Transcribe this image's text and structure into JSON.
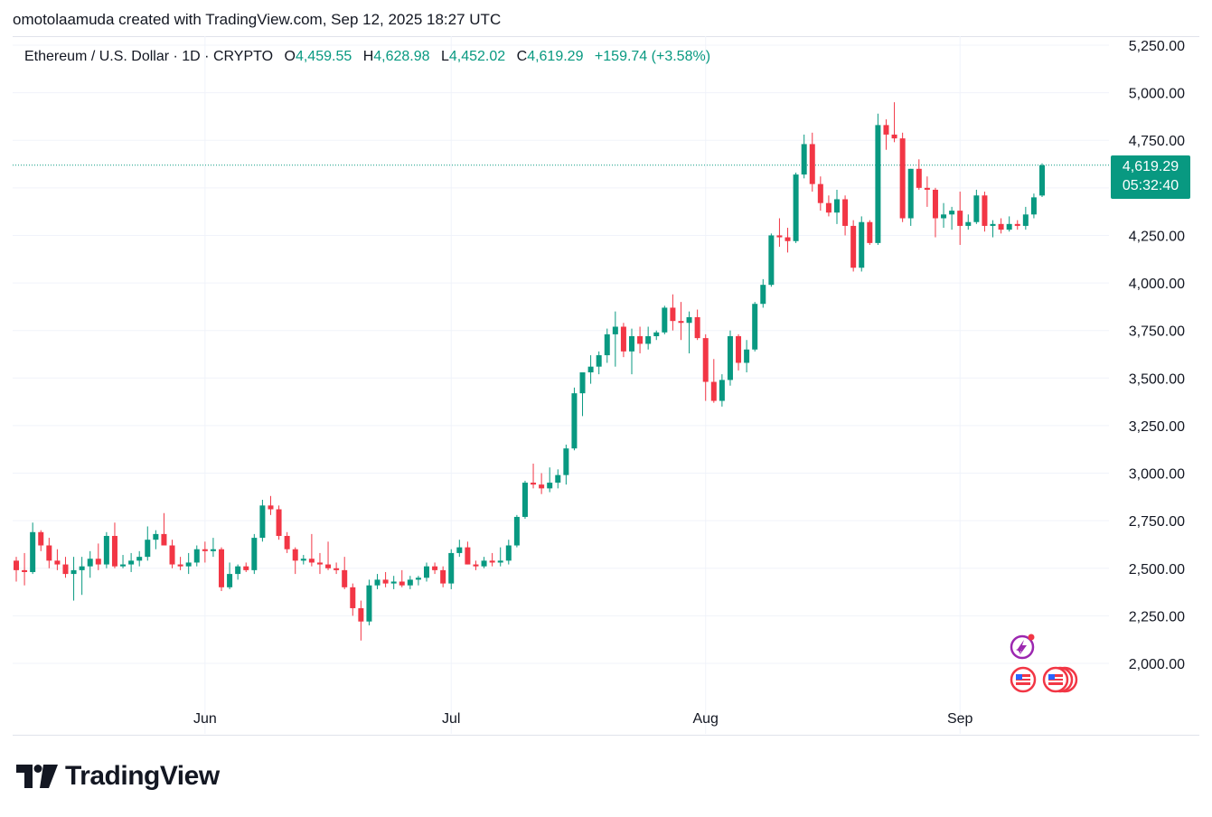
{
  "header": {
    "attribution": "omotolaamuda created with TradingView.com, Sep 12, 2025 18:27 UTC"
  },
  "legend": {
    "symbol": "Ethereum / U.S. Dollar · 1D · CRYPTO",
    "open_key": "O",
    "open": "4,459.55",
    "high_key": "H",
    "high": "4,628.98",
    "low_key": "L",
    "low": "4,452.02",
    "close_key": "C",
    "close": "4,619.29",
    "change": "+159.74 (+3.58%)"
  },
  "price_tag": {
    "price": "4,619.29",
    "countdown": "05:32:40"
  },
  "footer": {
    "brand": "TradingView"
  },
  "colors": {
    "up": "#089981",
    "down": "#f23645",
    "grid": "#f0f3fa",
    "text": "#131722",
    "tag": "#089981"
  },
  "icons": [
    "flash-event-icon",
    "us-flag-event-icon",
    "us-flag-event-group-icon"
  ],
  "chart_data": {
    "type": "candlestick",
    "y_ticks": [
      "5,250.00",
      "5,000.00",
      "4,750.00",
      "4,500.00",
      "4,250.00",
      "4,000.00",
      "3,750.00",
      "3,500.00",
      "3,250.00",
      "3,000.00",
      "2,750.00",
      "2,500.00",
      "2,250.00",
      "2,000.00"
    ],
    "y_tick_values": [
      5250,
      5000,
      4750,
      4500,
      4250,
      4000,
      3750,
      3500,
      3250,
      3000,
      2750,
      2500,
      2250,
      2000
    ],
    "x_ticks": [
      {
        "label": "Jun",
        "index": 23
      },
      {
        "label": "Jul",
        "index": 53
      },
      {
        "label": "Aug",
        "index": 84
      },
      {
        "label": "Sep",
        "index": 115
      }
    ],
    "last_price": 4619.29,
    "candles": [
      {
        "o": 2540,
        "h": 2560,
        "l": 2430,
        "c": 2490
      },
      {
        "o": 2490,
        "h": 2580,
        "l": 2410,
        "c": 2480
      },
      {
        "o": 2480,
        "h": 2740,
        "l": 2470,
        "c": 2690
      },
      {
        "o": 2690,
        "h": 2700,
        "l": 2590,
        "c": 2620
      },
      {
        "o": 2620,
        "h": 2660,
        "l": 2500,
        "c": 2540
      },
      {
        "o": 2540,
        "h": 2600,
        "l": 2490,
        "c": 2520
      },
      {
        "o": 2520,
        "h": 2560,
        "l": 2450,
        "c": 2470
      },
      {
        "o": 2470,
        "h": 2560,
        "l": 2330,
        "c": 2490
      },
      {
        "o": 2490,
        "h": 2560,
        "l": 2360,
        "c": 2510
      },
      {
        "o": 2510,
        "h": 2590,
        "l": 2450,
        "c": 2550
      },
      {
        "o": 2550,
        "h": 2630,
        "l": 2490,
        "c": 2520
      },
      {
        "o": 2520,
        "h": 2690,
        "l": 2500,
        "c": 2670
      },
      {
        "o": 2670,
        "h": 2740,
        "l": 2500,
        "c": 2510
      },
      {
        "o": 2510,
        "h": 2570,
        "l": 2500,
        "c": 2520
      },
      {
        "o": 2520,
        "h": 2580,
        "l": 2480,
        "c": 2540
      },
      {
        "o": 2540,
        "h": 2590,
        "l": 2510,
        "c": 2560
      },
      {
        "o": 2560,
        "h": 2720,
        "l": 2540,
        "c": 2650
      },
      {
        "o": 2650,
        "h": 2700,
        "l": 2600,
        "c": 2680
      },
      {
        "o": 2680,
        "h": 2790,
        "l": 2640,
        "c": 2620
      },
      {
        "o": 2620,
        "h": 2650,
        "l": 2500,
        "c": 2520
      },
      {
        "o": 2520,
        "h": 2560,
        "l": 2490,
        "c": 2510
      },
      {
        "o": 2510,
        "h": 2580,
        "l": 2470,
        "c": 2530
      },
      {
        "o": 2530,
        "h": 2620,
        "l": 2510,
        "c": 2600
      },
      {
        "o": 2600,
        "h": 2640,
        "l": 2530,
        "c": 2590
      },
      {
        "o": 2590,
        "h": 2660,
        "l": 2560,
        "c": 2600
      },
      {
        "o": 2600,
        "h": 2610,
        "l": 2380,
        "c": 2400
      },
      {
        "o": 2400,
        "h": 2530,
        "l": 2390,
        "c": 2470
      },
      {
        "o": 2470,
        "h": 2520,
        "l": 2440,
        "c": 2510
      },
      {
        "o": 2510,
        "h": 2530,
        "l": 2480,
        "c": 2490
      },
      {
        "o": 2490,
        "h": 2680,
        "l": 2470,
        "c": 2660
      },
      {
        "o": 2660,
        "h": 2860,
        "l": 2640,
        "c": 2830
      },
      {
        "o": 2830,
        "h": 2880,
        "l": 2780,
        "c": 2810
      },
      {
        "o": 2810,
        "h": 2830,
        "l": 2650,
        "c": 2670
      },
      {
        "o": 2670,
        "h": 2690,
        "l": 2580,
        "c": 2600
      },
      {
        "o": 2600,
        "h": 2610,
        "l": 2470,
        "c": 2540
      },
      {
        "o": 2540,
        "h": 2570,
        "l": 2520,
        "c": 2550
      },
      {
        "o": 2550,
        "h": 2680,
        "l": 2510,
        "c": 2530
      },
      {
        "o": 2530,
        "h": 2580,
        "l": 2470,
        "c": 2520
      },
      {
        "o": 2520,
        "h": 2640,
        "l": 2490,
        "c": 2500
      },
      {
        "o": 2500,
        "h": 2530,
        "l": 2470,
        "c": 2490
      },
      {
        "o": 2490,
        "h": 2560,
        "l": 2390,
        "c": 2400
      },
      {
        "o": 2400,
        "h": 2420,
        "l": 2250,
        "c": 2290
      },
      {
        "o": 2290,
        "h": 2330,
        "l": 2120,
        "c": 2220
      },
      {
        "o": 2220,
        "h": 2440,
        "l": 2200,
        "c": 2410
      },
      {
        "o": 2410,
        "h": 2470,
        "l": 2390,
        "c": 2440
      },
      {
        "o": 2440,
        "h": 2480,
        "l": 2400,
        "c": 2420
      },
      {
        "o": 2420,
        "h": 2460,
        "l": 2390,
        "c": 2430
      },
      {
        "o": 2430,
        "h": 2490,
        "l": 2400,
        "c": 2410
      },
      {
        "o": 2410,
        "h": 2460,
        "l": 2390,
        "c": 2440
      },
      {
        "o": 2440,
        "h": 2460,
        "l": 2410,
        "c": 2450
      },
      {
        "o": 2450,
        "h": 2530,
        "l": 2430,
        "c": 2510
      },
      {
        "o": 2510,
        "h": 2530,
        "l": 2470,
        "c": 2490
      },
      {
        "o": 2490,
        "h": 2510,
        "l": 2400,
        "c": 2420
      },
      {
        "o": 2420,
        "h": 2600,
        "l": 2390,
        "c": 2580
      },
      {
        "o": 2580,
        "h": 2650,
        "l": 2560,
        "c": 2610
      },
      {
        "o": 2610,
        "h": 2640,
        "l": 2520,
        "c": 2520
      },
      {
        "o": 2520,
        "h": 2540,
        "l": 2490,
        "c": 2510
      },
      {
        "o": 2510,
        "h": 2560,
        "l": 2500,
        "c": 2540
      },
      {
        "o": 2540,
        "h": 2580,
        "l": 2510,
        "c": 2530
      },
      {
        "o": 2530,
        "h": 2610,
        "l": 2510,
        "c": 2540
      },
      {
        "o": 2540,
        "h": 2650,
        "l": 2520,
        "c": 2620
      },
      {
        "o": 2620,
        "h": 2780,
        "l": 2610,
        "c": 2770
      },
      {
        "o": 2770,
        "h": 2960,
        "l": 2760,
        "c": 2950
      },
      {
        "o": 2950,
        "h": 3050,
        "l": 2920,
        "c": 2940
      },
      {
        "o": 2940,
        "h": 3000,
        "l": 2890,
        "c": 2920
      },
      {
        "o": 2920,
        "h": 3030,
        "l": 2900,
        "c": 2950
      },
      {
        "o": 2950,
        "h": 3020,
        "l": 2920,
        "c": 2990
      },
      {
        "o": 2990,
        "h": 3150,
        "l": 2940,
        "c": 3130
      },
      {
        "o": 3130,
        "h": 3450,
        "l": 3120,
        "c": 3420
      },
      {
        "o": 3420,
        "h": 3520,
        "l": 3300,
        "c": 3530
      },
      {
        "o": 3530,
        "h": 3620,
        "l": 3470,
        "c": 3560
      },
      {
        "o": 3560,
        "h": 3640,
        "l": 3520,
        "c": 3620
      },
      {
        "o": 3620,
        "h": 3760,
        "l": 3580,
        "c": 3730
      },
      {
        "o": 3730,
        "h": 3850,
        "l": 3560,
        "c": 3770
      },
      {
        "o": 3770,
        "h": 3790,
        "l": 3610,
        "c": 3640
      },
      {
        "o": 3640,
        "h": 3760,
        "l": 3520,
        "c": 3720
      },
      {
        "o": 3720,
        "h": 3770,
        "l": 3630,
        "c": 3680
      },
      {
        "o": 3680,
        "h": 3770,
        "l": 3650,
        "c": 3720
      },
      {
        "o": 3720,
        "h": 3750,
        "l": 3700,
        "c": 3740
      },
      {
        "o": 3740,
        "h": 3880,
        "l": 3730,
        "c": 3870
      },
      {
        "o": 3870,
        "h": 3940,
        "l": 3750,
        "c": 3800
      },
      {
        "o": 3800,
        "h": 3900,
        "l": 3700,
        "c": 3790
      },
      {
        "o": 3790,
        "h": 3850,
        "l": 3630,
        "c": 3820
      },
      {
        "o": 3820,
        "h": 3860,
        "l": 3700,
        "c": 3710
      },
      {
        "o": 3710,
        "h": 3730,
        "l": 3380,
        "c": 3480
      },
      {
        "o": 3480,
        "h": 3600,
        "l": 3370,
        "c": 3380
      },
      {
        "o": 3380,
        "h": 3520,
        "l": 3350,
        "c": 3490
      },
      {
        "o": 3490,
        "h": 3750,
        "l": 3460,
        "c": 3720
      },
      {
        "o": 3720,
        "h": 3730,
        "l": 3540,
        "c": 3580
      },
      {
        "o": 3580,
        "h": 3700,
        "l": 3530,
        "c": 3650
      },
      {
        "o": 3650,
        "h": 3900,
        "l": 3640,
        "c": 3890
      },
      {
        "o": 3890,
        "h": 4020,
        "l": 3870,
        "c": 3990
      },
      {
        "o": 3990,
        "h": 4260,
        "l": 3980,
        "c": 4250
      },
      {
        "o": 4250,
        "h": 4340,
        "l": 4190,
        "c": 4240
      },
      {
        "o": 4240,
        "h": 4290,
        "l": 4160,
        "c": 4220
      },
      {
        "o": 4220,
        "h": 4580,
        "l": 4210,
        "c": 4570
      },
      {
        "o": 4570,
        "h": 4780,
        "l": 4550,
        "c": 4730
      },
      {
        "o": 4730,
        "h": 4790,
        "l": 4480,
        "c": 4520
      },
      {
        "o": 4520,
        "h": 4560,
        "l": 4380,
        "c": 4420
      },
      {
        "o": 4420,
        "h": 4460,
        "l": 4350,
        "c": 4370
      },
      {
        "o": 4370,
        "h": 4490,
        "l": 4310,
        "c": 4440
      },
      {
        "o": 4440,
        "h": 4460,
        "l": 4250,
        "c": 4300
      },
      {
        "o": 4300,
        "h": 4330,
        "l": 4060,
        "c": 4080
      },
      {
        "o": 4080,
        "h": 4350,
        "l": 4060,
        "c": 4320
      },
      {
        "o": 4320,
        "h": 4330,
        "l": 4200,
        "c": 4210
      },
      {
        "o": 4210,
        "h": 4890,
        "l": 4200,
        "c": 4830
      },
      {
        "o": 4830,
        "h": 4860,
        "l": 4700,
        "c": 4780
      },
      {
        "o": 4780,
        "h": 4950,
        "l": 4740,
        "c": 4760
      },
      {
        "o": 4760,
        "h": 4790,
        "l": 4320,
        "c": 4340
      },
      {
        "o": 4340,
        "h": 4600,
        "l": 4300,
        "c": 4600
      },
      {
        "o": 4600,
        "h": 4650,
        "l": 4490,
        "c": 4500
      },
      {
        "o": 4500,
        "h": 4560,
        "l": 4400,
        "c": 4490
      },
      {
        "o": 4490,
        "h": 4500,
        "l": 4240,
        "c": 4340
      },
      {
        "o": 4340,
        "h": 4420,
        "l": 4290,
        "c": 4360
      },
      {
        "o": 4360,
        "h": 4400,
        "l": 4280,
        "c": 4380
      },
      {
        "o": 4380,
        "h": 4480,
        "l": 4200,
        "c": 4300
      },
      {
        "o": 4300,
        "h": 4360,
        "l": 4280,
        "c": 4320
      },
      {
        "o": 4320,
        "h": 4490,
        "l": 4310,
        "c": 4460
      },
      {
        "o": 4460,
        "h": 4480,
        "l": 4270,
        "c": 4300
      },
      {
        "o": 4300,
        "h": 4330,
        "l": 4240,
        "c": 4310
      },
      {
        "o": 4310,
        "h": 4340,
        "l": 4260,
        "c": 4280
      },
      {
        "o": 4280,
        "h": 4350,
        "l": 4270,
        "c": 4310
      },
      {
        "o": 4310,
        "h": 4330,
        "l": 4280,
        "c": 4300
      },
      {
        "o": 4300,
        "h": 4400,
        "l": 4280,
        "c": 4360
      },
      {
        "o": 4360,
        "h": 4470,
        "l": 4340,
        "c": 4450
      },
      {
        "o": 4459.55,
        "h": 4628.98,
        "l": 4452.02,
        "c": 4619.29
      }
    ]
  }
}
